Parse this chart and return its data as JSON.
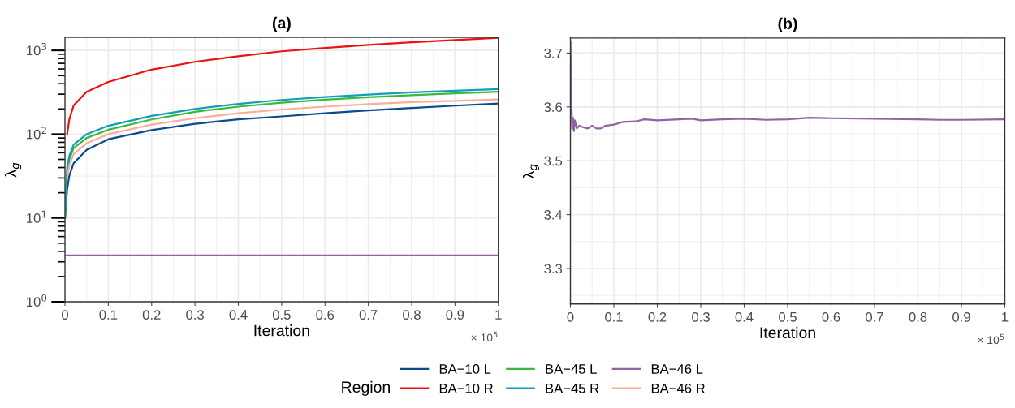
{
  "chart_data": [
    {
      "type": "line",
      "title": "(a)",
      "xlabel": "Iteration",
      "ylabel": "λ$_{g}$",
      "log": "y",
      "grid": true,
      "legend": "bottom",
      "legend_title": "Region",
      "x": [
        0,
        0.005,
        0.01,
        0.02,
        0.05,
        0.1,
        0.2,
        0.3,
        0.4,
        0.5,
        0.6,
        0.7,
        0.8,
        0.9,
        1.0
      ],
      "xlim": [
        0,
        1
      ],
      "xticks": [
        0,
        0.1,
        0.2,
        0.3,
        0.4,
        0.5,
        0.6,
        0.7,
        0.8,
        0.9,
        1
      ],
      "ylim": [
        1,
        1430
      ],
      "yticks": [
        {
          "value": 1,
          "label": "10$^{0}$"
        },
        {
          "value": 10,
          "label": "10$^{1}$"
        },
        {
          "value": 100,
          "label": "10$^{2}$"
        },
        {
          "value": 1000,
          "label": "10$^{3}$"
        }
      ],
      "annotations": [
        "× 10$^{5}$"
      ],
      "series": [
        {
          "name": "BA−10 L",
          "color": "#0b4b8c",
          "values": [
            10,
            22,
            32,
            45,
            65,
            87,
            112,
            133,
            150,
            163,
            178,
            192,
            205,
            219,
            232
          ]
        },
        {
          "name": "BA−10 R",
          "color": "#ee1111",
          "values": [
            null,
            100,
            150,
            220,
            320,
            420,
            590,
            730,
            850,
            975,
            1070,
            1160,
            1250,
            1330,
            1410
          ]
        },
        {
          "name": "BA−45 L",
          "color": "#3cb93c",
          "values": [
            10,
            35,
            50,
            68,
            90,
            113,
            150,
            185,
            213,
            237,
            258,
            276,
            292,
            307,
            320
          ]
        },
        {
          "name": "BA−45 R",
          "color": "#119fb8",
          "values": [
            10,
            40,
            55,
            75,
            100,
            126,
            165,
            200,
            230,
            256,
            277,
            297,
            315,
            330,
            344
          ]
        },
        {
          "name": "BA−46 L",
          "color": "#9063a5",
          "values": [
            3.58,
            3.58,
            3.58,
            3.58,
            3.58,
            3.58,
            3.58,
            3.58,
            3.58,
            3.58,
            3.58,
            3.58,
            3.58,
            3.58,
            3.58
          ]
        },
        {
          "name": "BA−46 R",
          "color": "#f9b09a",
          "values": [
            null,
            30,
            42,
            58,
            78,
            100,
            130,
            155,
            178,
            197,
            213,
            228,
            241,
            250,
            259
          ]
        }
      ]
    },
    {
      "type": "line",
      "title": "(b)",
      "xlabel": "Iteration",
      "ylabel": "λ$_{g}$",
      "grid": true,
      "x": [
        0,
        0.002,
        0.004,
        0.006,
        0.008,
        0.01,
        0.015,
        0.02,
        0.03,
        0.04,
        0.05,
        0.06,
        0.07,
        0.08,
        0.1,
        0.12,
        0.15,
        0.17,
        0.2,
        0.25,
        0.28,
        0.3,
        0.35,
        0.4,
        0.45,
        0.5,
        0.55,
        0.6,
        0.7,
        0.8,
        0.85,
        0.9,
        1.0
      ],
      "xlim": [
        0,
        1
      ],
      "xticks": [
        0,
        0.1,
        0.2,
        0.3,
        0.4,
        0.5,
        0.6,
        0.7,
        0.8,
        0.9,
        1
      ],
      "ylim": [
        3.234,
        3.728
      ],
      "yticks": [
        3.3,
        3.4,
        3.5,
        3.6,
        3.7
      ],
      "annotations": [
        "× 10$^{5}$"
      ],
      "series": [
        {
          "color": "#9063a5",
          "values": [
            3.72,
            3.62,
            3.56,
            3.58,
            3.555,
            3.575,
            3.56,
            3.565,
            3.562,
            3.56,
            3.565,
            3.56,
            3.56,
            3.565,
            3.567,
            3.572,
            3.573,
            3.577,
            3.575,
            3.577,
            3.578,
            3.575,
            3.577,
            3.578,
            3.576,
            3.577,
            3.58,
            3.579,
            3.578,
            3.577,
            3.576,
            3.576,
            3.577
          ]
        }
      ]
    }
  ]
}
